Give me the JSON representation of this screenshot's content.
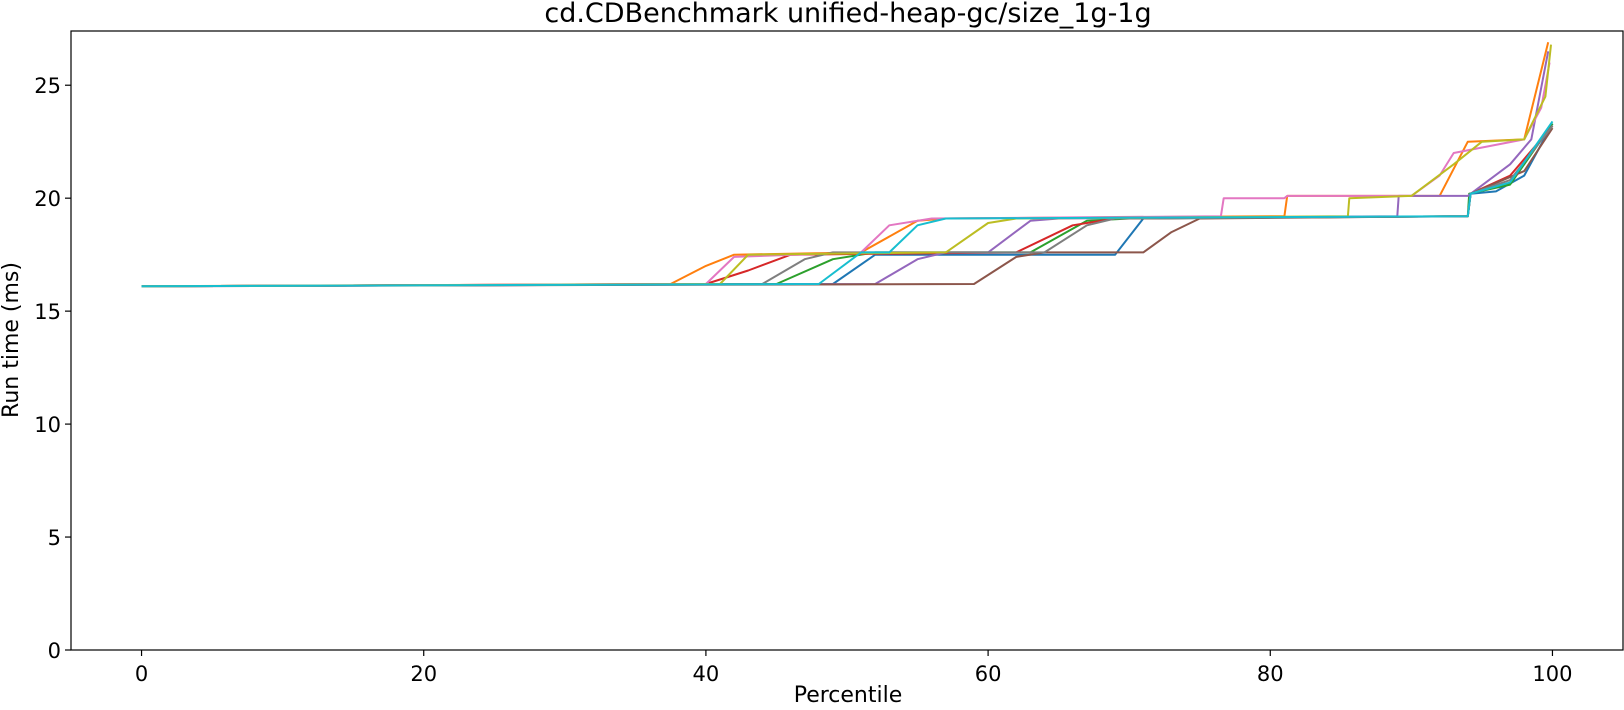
{
  "chart_data": {
    "type": "line",
    "title": "cd.CDBenchmark unified-heap-gc/size_1g-1g",
    "xlabel": "Percentile",
    "ylabel": "Run time (ms)",
    "xlim": [
      -5,
      105
    ],
    "ylim": [
      0,
      27.4
    ],
    "xticks": [
      0,
      20,
      40,
      60,
      80,
      100
    ],
    "yticks": [
      0,
      5,
      10,
      15,
      20,
      25
    ],
    "grid": false,
    "legend": "none",
    "series": [
      {
        "color": "#1f77b4",
        "points": [
          [
            0,
            16.1
          ],
          [
            49,
            16.2
          ],
          [
            52,
            17.5
          ],
          [
            69,
            17.5
          ],
          [
            71,
            19.1
          ],
          [
            94,
            19.2
          ],
          [
            94.2,
            20.2
          ],
          [
            96,
            20.3
          ],
          [
            98,
            21.0
          ],
          [
            100,
            23.3
          ]
        ]
      },
      {
        "color": "#ff7f0e",
        "points": [
          [
            0,
            16.1
          ],
          [
            37.5,
            16.2
          ],
          [
            40,
            17.0
          ],
          [
            42,
            17.5
          ],
          [
            51,
            17.6
          ],
          [
            55,
            19.0
          ],
          [
            57,
            19.1
          ],
          [
            81,
            19.2
          ],
          [
            81.2,
            20.1
          ],
          [
            92,
            20.1
          ],
          [
            94,
            22.5
          ],
          [
            98,
            22.6
          ],
          [
            99.7,
            26.9
          ]
        ]
      },
      {
        "color": "#2ca02c",
        "points": [
          [
            0,
            16.1
          ],
          [
            45,
            16.2
          ],
          [
            49,
            17.3
          ],
          [
            52,
            17.6
          ],
          [
            63,
            17.6
          ],
          [
            67,
            19.0
          ],
          [
            70,
            19.1
          ],
          [
            94,
            19.2
          ],
          [
            94.1,
            20.2
          ],
          [
            97,
            20.6
          ],
          [
            100,
            23.3
          ]
        ]
      },
      {
        "color": "#d62728",
        "points": [
          [
            0,
            16.1
          ],
          [
            40,
            16.2
          ],
          [
            43,
            16.8
          ],
          [
            46,
            17.5
          ],
          [
            62,
            17.6
          ],
          [
            66,
            18.8
          ],
          [
            69,
            19.1
          ],
          [
            94,
            19.2
          ],
          [
            94.2,
            20.2
          ],
          [
            97,
            21.0
          ],
          [
            100,
            23.2
          ]
        ]
      },
      {
        "color": "#9467bd",
        "points": [
          [
            0,
            16.1
          ],
          [
            52,
            16.2
          ],
          [
            55,
            17.3
          ],
          [
            57,
            17.6
          ],
          [
            60,
            17.6
          ],
          [
            63,
            19.0
          ],
          [
            65,
            19.1
          ],
          [
            89,
            19.2
          ],
          [
            89.1,
            20.1
          ],
          [
            94,
            20.1
          ],
          [
            97,
            21.5
          ],
          [
            98.5,
            22.6
          ],
          [
            99.7,
            26.5
          ]
        ]
      },
      {
        "color": "#8c564b",
        "points": [
          [
            0,
            16.1
          ],
          [
            59,
            16.2
          ],
          [
            62,
            17.4
          ],
          [
            64,
            17.6
          ],
          [
            71,
            17.6
          ],
          [
            73,
            18.5
          ],
          [
            75,
            19.1
          ],
          [
            94,
            19.2
          ],
          [
            94.2,
            20.2
          ],
          [
            98,
            21.2
          ],
          [
            100,
            23.1
          ]
        ]
      },
      {
        "color": "#e377c2",
        "points": [
          [
            0,
            16.1
          ],
          [
            40,
            16.2
          ],
          [
            42,
            17.4
          ],
          [
            51,
            17.6
          ],
          [
            53,
            18.8
          ],
          [
            56,
            19.1
          ],
          [
            76.5,
            19.2
          ],
          [
            76.7,
            20.0
          ],
          [
            81,
            20.0
          ],
          [
            81.2,
            20.1
          ],
          [
            90,
            20.1
          ],
          [
            92,
            21.0
          ],
          [
            93,
            22.0
          ],
          [
            98,
            22.6
          ],
          [
            99.2,
            24.0
          ],
          [
            99.8,
            26.0
          ]
        ]
      },
      {
        "color": "#7f7f7f",
        "points": [
          [
            0,
            16.1
          ],
          [
            44,
            16.2
          ],
          [
            47,
            17.3
          ],
          [
            49,
            17.6
          ],
          [
            64,
            17.6
          ],
          [
            67,
            18.8
          ],
          [
            69,
            19.1
          ],
          [
            94,
            19.2
          ],
          [
            94.2,
            20.2
          ],
          [
            97,
            20.8
          ],
          [
            100,
            23.2
          ]
        ]
      },
      {
        "color": "#bcbd22",
        "points": [
          [
            0,
            16.1
          ],
          [
            41,
            16.2
          ],
          [
            43,
            17.5
          ],
          [
            57,
            17.6
          ],
          [
            60,
            18.9
          ],
          [
            62,
            19.1
          ],
          [
            85.5,
            19.2
          ],
          [
            85.6,
            20.0
          ],
          [
            90,
            20.1
          ],
          [
            93,
            21.5
          ],
          [
            95,
            22.5
          ],
          [
            98,
            22.6
          ],
          [
            99.5,
            24.5
          ],
          [
            99.9,
            26.8
          ]
        ]
      },
      {
        "color": "#17becf",
        "points": [
          [
            0,
            16.1
          ],
          [
            48,
            16.2
          ],
          [
            51,
            17.6
          ],
          [
            53,
            17.6
          ],
          [
            55,
            18.8
          ],
          [
            57,
            19.1
          ],
          [
            94,
            19.2
          ],
          [
            94.2,
            20.2
          ],
          [
            97,
            20.7
          ],
          [
            100,
            23.4
          ]
        ]
      }
    ]
  }
}
